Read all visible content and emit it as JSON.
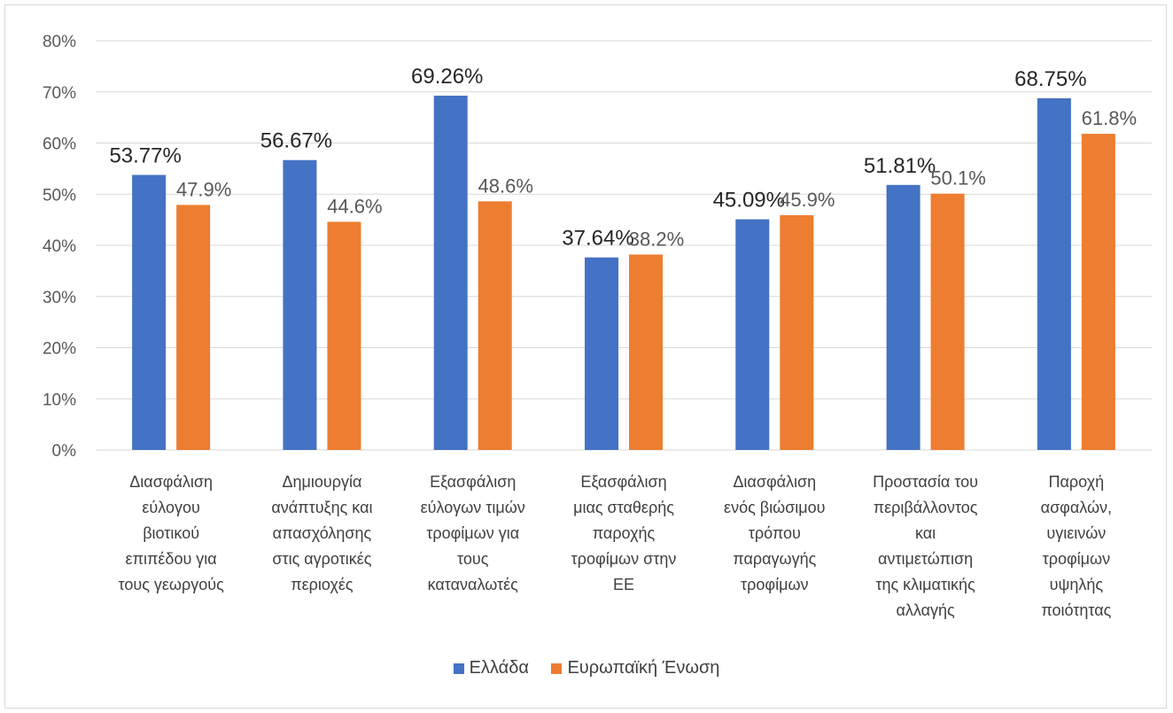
{
  "chart_data": {
    "type": "bar",
    "categories": [
      [
        "Διασφάλιση",
        "εύλογου",
        "βιοτικού",
        "επιπέδου για",
        "τους γεωργούς"
      ],
      [
        "Δημιουργία",
        "ανάπτυξης και",
        "απασχόλησης",
        "στις αγροτικές",
        "περιοχές"
      ],
      [
        "Εξασφάλιση",
        "εύλογων τιμών",
        "τροφίμων για",
        "τους",
        "καταναλωτές"
      ],
      [
        "Εξασφάλιση",
        "μιας σταθερής",
        "παροχής",
        "τροφίμων στην",
        "ΕΕ"
      ],
      [
        "Διασφάλιση",
        "ενός βιώσιμου",
        "τρόπου",
        "παραγωγής",
        "τροφίμων"
      ],
      [
        "Προστασία του",
        "περιβάλλοντος",
        "και",
        "αντιμετώπιση",
        "της κλιματικής",
        "αλλαγής"
      ],
      [
        "Παροχή",
        "ασφαλών,",
        "υγιεινών",
        "τροφίμων",
        "υψηλής",
        "ποιότητας"
      ]
    ],
    "series": [
      {
        "name": "Ελλάδα",
        "color": "#4472c4",
        "values": [
          53.77,
          56.67,
          69.26,
          37.64,
          45.09,
          51.81,
          68.75
        ],
        "labels": [
          "53.77%",
          "56.67%",
          "69.26%",
          "37.64%",
          "45.09%",
          "51.81%",
          "68.75%"
        ]
      },
      {
        "name": "Ευρωπαϊκή Ένωση",
        "color": "#ed7d31",
        "values": [
          47.9,
          44.6,
          48.6,
          38.2,
          45.9,
          50.1,
          61.8
        ],
        "labels": [
          "47.9%",
          "44.6%",
          "48.6%",
          "38.2%",
          "45.9%",
          "50.1%",
          "61.8%"
        ]
      }
    ],
    "y_ticks": [
      "0%",
      "10%",
      "20%",
      "30%",
      "40%",
      "50%",
      "60%",
      "70%",
      "80%"
    ],
    "ylim": [
      0,
      80
    ],
    "grid": true,
    "legend_position": "bottom",
    "title": "",
    "xlabel": "",
    "ylabel": ""
  }
}
